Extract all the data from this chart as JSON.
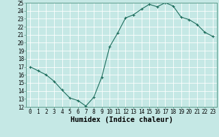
{
  "x": [
    0,
    1,
    2,
    3,
    4,
    5,
    6,
    7,
    8,
    9,
    10,
    11,
    12,
    13,
    14,
    15,
    16,
    17,
    18,
    19,
    20,
    21,
    22,
    23
  ],
  "y": [
    17,
    16.5,
    16,
    15.2,
    14.1,
    13.1,
    12.8,
    12.1,
    13.2,
    15.7,
    19.5,
    21.2,
    23.1,
    23.5,
    24.2,
    24.8,
    24.5,
    25.0,
    24.6,
    23.2,
    22.9,
    22.3,
    21.3,
    20.8
  ],
  "line_color": "#1a6b5a",
  "marker": "+",
  "marker_size": 3,
  "marker_lw": 0.8,
  "line_width": 0.8,
  "bg_color": "#c5e8e5",
  "grid_color": "#ffffff",
  "xlabel": "Humidex (Indice chaleur)",
  "xlim": [
    -0.5,
    23.5
  ],
  "ylim": [
    12,
    25
  ],
  "yticks": [
    12,
    13,
    14,
    15,
    16,
    17,
    18,
    19,
    20,
    21,
    22,
    23,
    24,
    25
  ],
  "xticks": [
    0,
    1,
    2,
    3,
    4,
    5,
    6,
    7,
    8,
    9,
    10,
    11,
    12,
    13,
    14,
    15,
    16,
    17,
    18,
    19,
    20,
    21,
    22,
    23
  ],
  "tick_label_fontsize": 5.5,
  "xlabel_fontsize": 7.5,
  "spine_color": "#5a9a8a"
}
